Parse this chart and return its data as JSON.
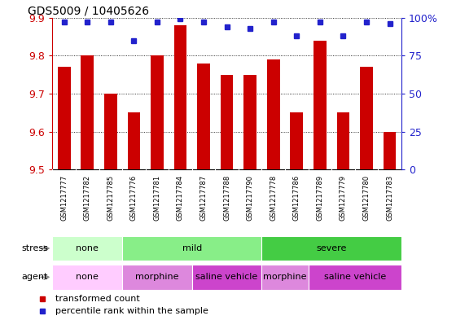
{
  "title": "GDS5009 / 10405626",
  "samples": [
    "GSM1217777",
    "GSM1217782",
    "GSM1217785",
    "GSM1217776",
    "GSM1217781",
    "GSM1217784",
    "GSM1217787",
    "GSM1217788",
    "GSM1217790",
    "GSM1217778",
    "GSM1217786",
    "GSM1217789",
    "GSM1217779",
    "GSM1217780",
    "GSM1217783"
  ],
  "transformed_counts": [
    9.77,
    9.8,
    9.7,
    9.65,
    9.8,
    9.88,
    9.78,
    9.75,
    9.75,
    9.79,
    9.65,
    9.84,
    9.65,
    9.77,
    9.6
  ],
  "percentile_ranks": [
    97,
    97,
    97,
    85,
    97,
    99,
    97,
    94,
    93,
    97,
    88,
    97,
    88,
    97,
    96
  ],
  "ymin": 9.5,
  "ymax": 9.9,
  "bar_color": "#cc0000",
  "dot_color": "#2222cc",
  "stress_groups": [
    {
      "label": "none",
      "start": 0,
      "end": 3,
      "color": "#ccffcc"
    },
    {
      "label": "mild",
      "start": 3,
      "end": 9,
      "color": "#88ee88"
    },
    {
      "label": "severe",
      "start": 9,
      "end": 15,
      "color": "#44cc44"
    }
  ],
  "agent_groups": [
    {
      "label": "none",
      "start": 0,
      "end": 3,
      "color": "#ffccff"
    },
    {
      "label": "morphine",
      "start": 3,
      "end": 6,
      "color": "#dd88dd"
    },
    {
      "label": "saline vehicle",
      "start": 6,
      "end": 9,
      "color": "#cc44cc"
    },
    {
      "label": "morphine",
      "start": 9,
      "end": 11,
      "color": "#dd88dd"
    },
    {
      "label": "saline vehicle",
      "start": 11,
      "end": 15,
      "color": "#cc44cc"
    }
  ],
  "right_yticks": [
    0,
    25,
    50,
    75,
    100
  ],
  "right_yticklabels": [
    "0",
    "25",
    "50",
    "75",
    "100%"
  ],
  "left_yticks": [
    9.5,
    9.6,
    9.7,
    9.8,
    9.9
  ],
  "legend_bar_label": "transformed count",
  "legend_dot_label": "percentile rank within the sample",
  "bar_color_legend": "#cc0000",
  "dot_color_legend": "#2222cc",
  "left_tick_color": "#cc0000",
  "right_tick_color": "#2222cc",
  "background_color": "#ffffff",
  "xtick_bg_color": "#cccccc",
  "bar_width": 0.55
}
